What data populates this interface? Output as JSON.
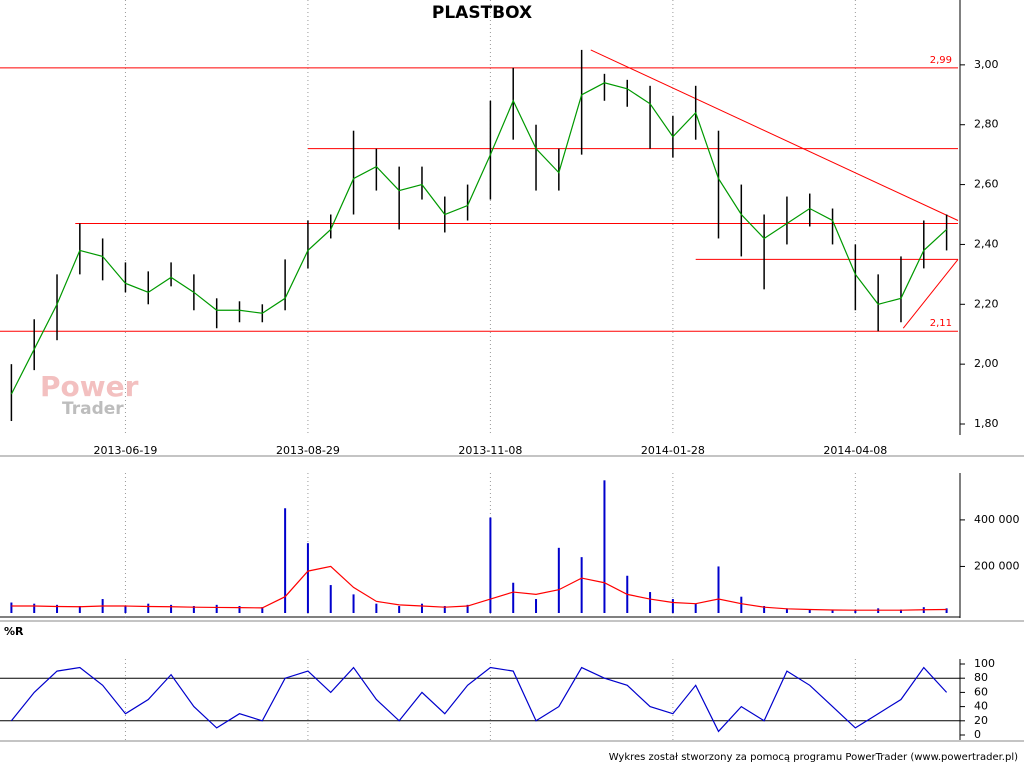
{
  "chart_data": [
    {
      "type": "range",
      "title": "PLASTBOX",
      "categories": [
        null,
        null,
        null,
        null,
        null,
        "2013-06-19",
        null,
        null,
        null,
        null,
        null,
        null,
        null,
        "2013-08-29",
        null,
        null,
        null,
        null,
        null,
        null,
        null,
        "2013-11-08",
        null,
        null,
        null,
        null,
        null,
        null,
        null,
        "2014-01-28",
        null,
        null,
        null,
        null,
        null,
        null,
        null,
        "2014-04-08",
        null,
        null,
        null,
        null
      ],
      "high": [
        2.0,
        2.15,
        2.3,
        2.47,
        2.42,
        2.34,
        2.31,
        2.34,
        2.3,
        2.22,
        2.21,
        2.2,
        2.35,
        2.48,
        2.5,
        2.78,
        2.72,
        2.66,
        2.66,
        2.56,
        2.6,
        2.88,
        2.99,
        2.8,
        2.72,
        3.05,
        2.97,
        2.95,
        2.93,
        2.83,
        2.93,
        2.78,
        2.6,
        2.5,
        2.56,
        2.57,
        2.52,
        2.4,
        2.3,
        2.36,
        2.48,
        2.5
      ],
      "low": [
        1.81,
        1.98,
        2.08,
        2.3,
        2.28,
        2.24,
        2.2,
        2.26,
        2.18,
        2.12,
        2.14,
        2.14,
        2.18,
        2.32,
        2.42,
        2.5,
        2.58,
        2.45,
        2.55,
        2.44,
        2.48,
        2.55,
        2.75,
        2.58,
        2.58,
        2.7,
        2.88,
        2.86,
        2.72,
        2.69,
        2.75,
        2.42,
        2.36,
        2.25,
        2.4,
        2.46,
        2.4,
        2.18,
        2.11,
        2.14,
        2.32,
        2.38
      ],
      "ma": [
        1.9,
        2.05,
        2.2,
        2.38,
        2.36,
        2.27,
        2.24,
        2.29,
        2.24,
        2.18,
        2.18,
        2.17,
        2.22,
        2.38,
        2.45,
        2.62,
        2.66,
        2.58,
        2.6,
        2.5,
        2.53,
        2.7,
        2.88,
        2.72,
        2.64,
        2.9,
        2.94,
        2.92,
        2.87,
        2.76,
        2.84,
        2.62,
        2.5,
        2.42,
        2.47,
        2.52,
        2.48,
        2.3,
        2.2,
        2.22,
        2.38,
        2.45
      ],
      "color": "#000000",
      "ma_color": "#009900",
      "line_color": "#ff0000",
      "levels": [
        {
          "value": 2.99,
          "label": "2,99"
        },
        {
          "value": 2.72
        },
        {
          "value": 2.47
        },
        {
          "value": 2.35
        },
        {
          "value": 2.11,
          "label": "2,11"
        }
      ],
      "trendlines": [
        [
          3.05,
          2.48
        ],
        [
          2.12,
          2.35
        ]
      ],
      "ylim": [
        1.78,
        3.2
      ],
      "yticks": [
        {
          "value": 1.8,
          "label": "1,80"
        },
        {
          "value": 2.0,
          "label": "2,00"
        },
        {
          "value": 2.2,
          "label": "2,20"
        },
        {
          "value": 2.4,
          "label": "2,40"
        },
        {
          "value": 2.6,
          "label": "2,60"
        },
        {
          "value": 2.8,
          "label": "2,80"
        },
        {
          "value": 3.0,
          "label": "3,00"
        }
      ],
      "grid": true
    },
    {
      "type": "bar",
      "values": [
        45000,
        40000,
        35000,
        30000,
        60000,
        30000,
        40000,
        35000,
        30000,
        35000,
        30000,
        25000,
        450000,
        300000,
        120000,
        80000,
        40000,
        30000,
        40000,
        30000,
        35000,
        410000,
        130000,
        60000,
        280000,
        240000,
        570000,
        160000,
        90000,
        60000,
        40000,
        200000,
        70000,
        30000,
        20000,
        15000,
        15000,
        12000,
        20000,
        15000,
        25000,
        20000
      ],
      "ma": [
        30000,
        30000,
        28000,
        27000,
        30000,
        30000,
        28000,
        27000,
        25000,
        24000,
        23000,
        22000,
        70000,
        180000,
        200000,
        110000,
        50000,
        35000,
        30000,
        25000,
        30000,
        60000,
        90000,
        80000,
        100000,
        150000,
        130000,
        80000,
        60000,
        45000,
        40000,
        60000,
        40000,
        25000,
        18000,
        15000,
        13000,
        12000,
        12000,
        12000,
        14000,
        15000
      ],
      "color": "#0000cc",
      "ma_color": "#ff0000",
      "ylim": [
        0,
        580000
      ],
      "yticks": [
        {
          "value": 200000,
          "label": "200 000"
        },
        {
          "value": 400000,
          "label": "400 000"
        }
      ]
    },
    {
      "type": "line",
      "title": "%R",
      "values": [
        20,
        60,
        90,
        95,
        70,
        30,
        50,
        85,
        40,
        10,
        30,
        20,
        80,
        90,
        60,
        95,
        50,
        20,
        60,
        30,
        70,
        95,
        90,
        20,
        40,
        95,
        80,
        70,
        40,
        30,
        70,
        5,
        40,
        20,
        90,
        70,
        40,
        10,
        30,
        50,
        95,
        60
      ],
      "color": "#0000cc",
      "levels": [
        20,
        80
      ],
      "ylim": [
        0,
        100
      ],
      "yticks": [
        0,
        20,
        40,
        60,
        80,
        100
      ]
    }
  ],
  "watermark": [
    "Power",
    "Trader"
  ],
  "footer": "Wykres został stworzony za pomocą programu PowerTrader (www.powertrader.pl)"
}
